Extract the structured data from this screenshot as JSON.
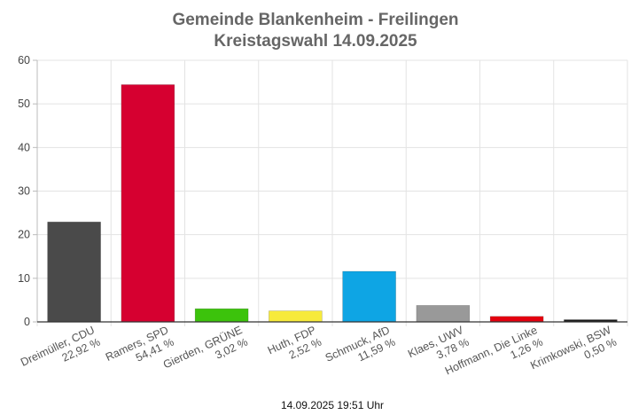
{
  "chart_data": {
    "type": "bar",
    "title": "Gemeinde Blankenheim - Freilingen",
    "subtitle": "Kreistagswahl 14.09.2025",
    "xlabel": "",
    "ylabel": "",
    "ylim": [
      0,
      60
    ],
    "yticks": [
      0,
      10,
      20,
      30,
      40,
      50,
      60
    ],
    "grid": true,
    "legend": "none",
    "categories": [
      "Dreimüller, CDU",
      "Ramers, SPD",
      "Gierden, GRÜNE",
      "Huth, FDP",
      "Schmuck, AfD",
      "Klaes, UWV",
      "Hoffmann, Die Linke",
      "Krimkowski, BSW"
    ],
    "values": [
      22.92,
      54.41,
      3.02,
      2.52,
      11.59,
      3.78,
      1.26,
      0.5
    ],
    "value_labels": [
      "22,92 %",
      "54,41 %",
      "3,02 %",
      "2,52 %",
      "11,59 %",
      "3,78 %",
      "1,26 %",
      "0,50 %"
    ],
    "colors": [
      "#4a4a4a",
      "#d60030",
      "#3cc30c",
      "#f7ea3b",
      "#0ea5e4",
      "#999999",
      "#e4000f",
      "#1a1a1a"
    ],
    "footer": "14.09.2025 19:51 Uhr"
  }
}
